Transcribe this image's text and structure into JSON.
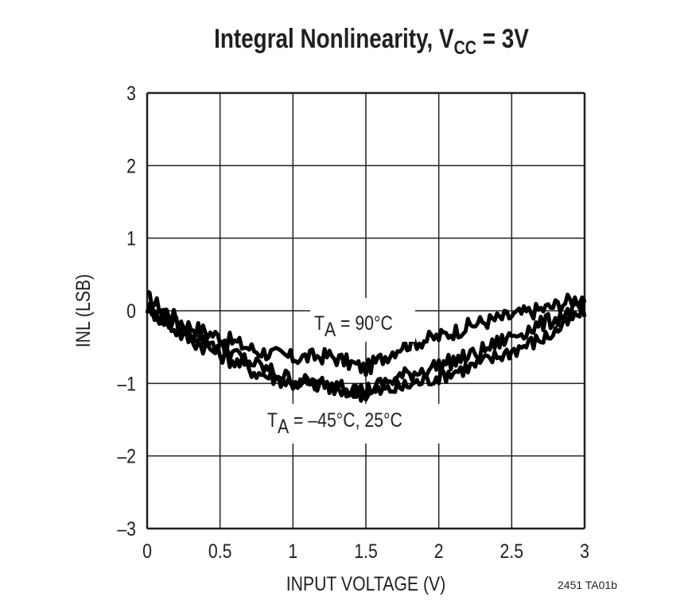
{
  "chart_data": {
    "type": "line",
    "title": {
      "main": "Integral Nonlinearity, V",
      "sub": "CC",
      "tail": " = 3V"
    },
    "xlabel": "INPUT VOLTAGE (V)",
    "ylabel": "INL (LSB)",
    "xlim": [
      0,
      3
    ],
    "ylim": [
      -3,
      3
    ],
    "grid": true,
    "xticks": [
      "0",
      "0.5",
      "1",
      "1.5",
      "2",
      "2.5",
      "3"
    ],
    "yticks": [
      "3",
      "2",
      "1",
      "0",
      "–1",
      "–2",
      "–3"
    ],
    "x": [
      0,
      0.25,
      0.5,
      0.75,
      1.0,
      1.25,
      1.5,
      1.75,
      2.0,
      2.25,
      2.5,
      2.75,
      3.0
    ],
    "series": [
      {
        "values": [
          0.18,
          -0.18,
          -0.36,
          -0.55,
          -0.65,
          -0.62,
          -0.8,
          -0.47,
          -0.36,
          -0.18,
          -0.07,
          0.04,
          0.2
        ]
      },
      {
        "values": [
          0.05,
          -0.35,
          -0.6,
          -0.85,
          -1.0,
          -1.02,
          -1.15,
          -1.05,
          -0.9,
          -0.75,
          -0.55,
          -0.35,
          0.0
        ]
      },
      {
        "values": [
          0.0,
          -0.25,
          -0.5,
          -0.75,
          -0.95,
          -1.05,
          -1.1,
          -0.9,
          -0.75,
          -0.6,
          -0.35,
          -0.15,
          0.05
        ]
      }
    ],
    "annotations": [
      {
        "text": "T",
        "sub": "A",
        "tail": " = 90°C"
      },
      {
        "text": "T",
        "sub": "A",
        "tail": " = –45°C, 25°C"
      }
    ],
    "line_color": "#000000",
    "grid_color": "#231f20",
    "footnote": "2451 TA01b"
  }
}
